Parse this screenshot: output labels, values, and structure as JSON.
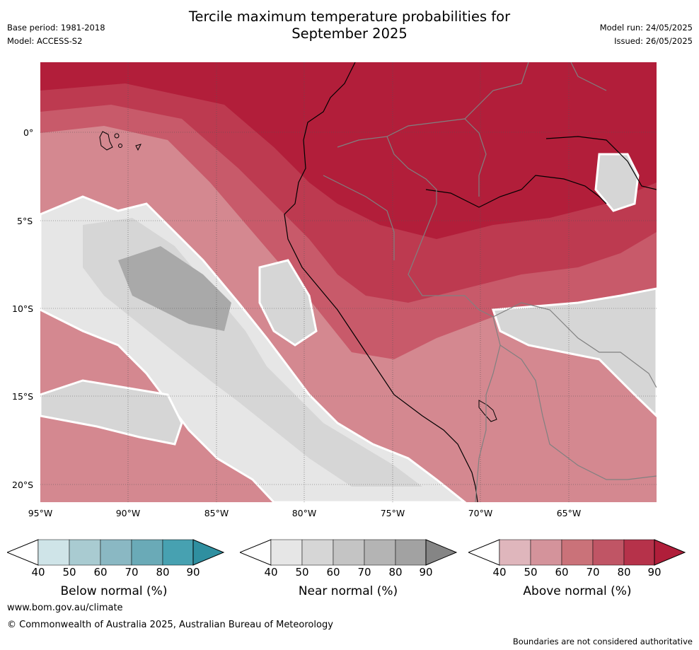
{
  "header": {
    "title_line1": "Tercile maximum temperature probabilities for",
    "title_line2": "September 2025",
    "base_period": "Base period: 1981-2018",
    "model": "Model: ACCESS-S2",
    "model_run": "Model run: 24/05/2025",
    "issued": "Issued: 26/05/2025"
  },
  "map": {
    "lat_labels": [
      "0°",
      "5°S",
      "10°S",
      "15°S",
      "20°S"
    ],
    "lon_labels": [
      "95°W",
      "90°W",
      "85°W",
      "80°W",
      "75°W",
      "70°W",
      "65°W"
    ],
    "colors": {
      "sea_above_90": "#b21e3a",
      "above_80": "#bd3a50",
      "above_70": "#c85a6a",
      "above_60": "#d48890",
      "above_50": "#dfb0b6",
      "near_50": "#e6e6e6",
      "near_60": "#d6d6d6",
      "near_70": "#c4c4c4",
      "near_80": "#a9a9a9",
      "coast": "#000000",
      "border": "#808080"
    }
  },
  "colorbars": [
    {
      "title": "Below normal (%)",
      "ticks": [
        "40",
        "50",
        "60",
        "70",
        "80",
        "90"
      ],
      "colors": [
        "#cfe4e8",
        "#a9cbd1",
        "#8ab8c3",
        "#6aaab7",
        "#47a1b1",
        "#2f8fa0"
      ]
    },
    {
      "title": "Near normal (%)",
      "ticks": [
        "40",
        "50",
        "60",
        "70",
        "80",
        "90"
      ],
      "colors": [
        "#e6e6e6",
        "#d6d6d6",
        "#c4c4c4",
        "#b4b4b4",
        "#a2a2a2",
        "#858585"
      ]
    },
    {
      "title": "Above normal (%)",
      "ticks": [
        "40",
        "50",
        "60",
        "70",
        "80",
        "90"
      ],
      "colors": [
        "#dfb6bc",
        "#d4939b",
        "#ca7279",
        "#c05565",
        "#b6324a",
        "#b01e3a"
      ]
    }
  ],
  "footer": {
    "website": "www.bom.gov.au/climate",
    "copyright": "© Commonwealth of Australia 2025, Australian Bureau of Meteorology",
    "disclaimer": "Boundaries are not considered authoritative"
  }
}
